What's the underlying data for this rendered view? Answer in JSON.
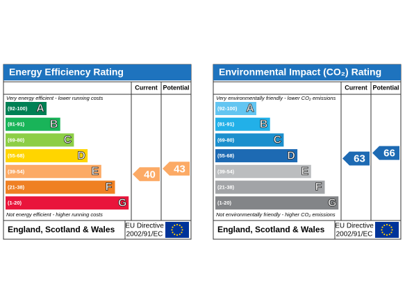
{
  "panels": [
    {
      "title": "Energy Efficiency Rating",
      "columns": [
        "Current",
        "Potential"
      ],
      "top_note": "Very energy efficient - lower running costs",
      "bottom_note": "Not energy efficient - higher running costs",
      "bands": [
        {
          "range": "(92-100)",
          "letter": "A",
          "color": "#008054"
        },
        {
          "range": "(81-91)",
          "letter": "B",
          "color": "#19b459"
        },
        {
          "range": "(69-80)",
          "letter": "C",
          "color": "#8dce46"
        },
        {
          "range": "(55-68)",
          "letter": "D",
          "color": "#ffd500"
        },
        {
          "range": "(39-54)",
          "letter": "E",
          "color": "#fcaa65"
        },
        {
          "range": "(21-38)",
          "letter": "F",
          "color": "#ef8023"
        },
        {
          "range": "(1-20)",
          "letter": "G",
          "color": "#e9153b"
        }
      ],
      "current": 40,
      "potential": 43,
      "footer": {
        "region": "England, Scotland & Wales",
        "directive": [
          "EU Directive",
          "2002/91/EC"
        ]
      }
    },
    {
      "title": "Environmental Impact (CO₂) Rating",
      "columns": [
        "Current",
        "Potential"
      ],
      "top_note": "Very environmentally friendly - lower CO₂ emissions",
      "bottom_note": "Not environmentally friendly - higher CO₂ emissions",
      "bands": [
        {
          "range": "(92-100)",
          "letter": "A",
          "color": "#63c5f1"
        },
        {
          "range": "(81-91)",
          "letter": "B",
          "color": "#22b0e8"
        },
        {
          "range": "(69-80)",
          "letter": "C",
          "color": "#1b8fcd"
        },
        {
          "range": "(55-68)",
          "letter": "D",
          "color": "#1d6ab3"
        },
        {
          "range": "(39-54)",
          "letter": "E",
          "color": "#bbbdbf"
        },
        {
          "range": "(21-38)",
          "letter": "F",
          "color": "#a2a4a7"
        },
        {
          "range": "(1-20)",
          "letter": "G",
          "color": "#838588"
        }
      ],
      "current": 63,
      "potential": 66,
      "footer": {
        "region": "England, Scotland & Wales",
        "directive": [
          "EU Directive",
          "2002/91/EC"
        ]
      }
    }
  ]
}
